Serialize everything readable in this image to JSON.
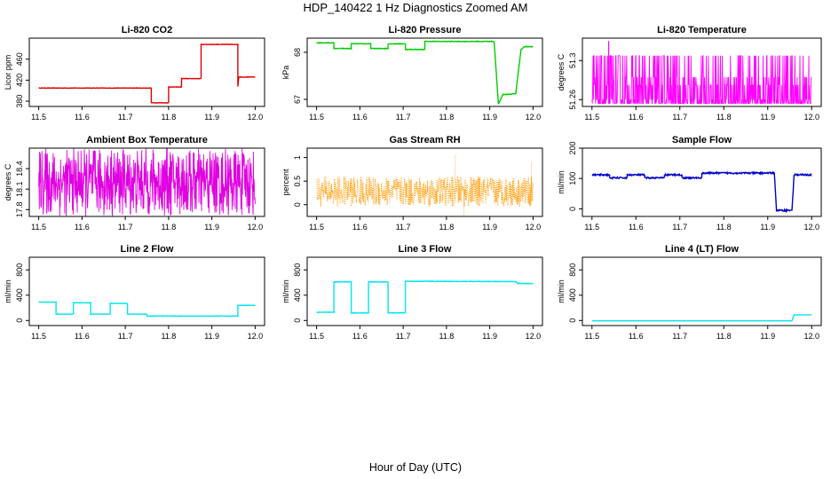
{
  "figure": {
    "title": "HDP_140422  1 Hz Diagnostics Zoomed AM",
    "xlabel": "Hour of Day (UTC)"
  },
  "chart_data": [
    {
      "type": "line",
      "title": "Li-820 CO2",
      "ylabel": "Licor ppm",
      "color": "#e00000",
      "xlim": [
        11.5,
        12.0
      ],
      "ylim": [
        370,
        500
      ],
      "xticks": [
        "11.5",
        "11.6",
        "11.7",
        "11.8",
        "11.9",
        "12.0"
      ],
      "yticks": [
        380,
        420,
        460
      ],
      "series": [
        {
          "pattern": "step",
          "noise": 0.4,
          "points": [
            [
              11.5,
              405
            ],
            [
              11.76,
              405
            ],
            [
              11.76,
              377
            ],
            [
              11.8,
              377
            ],
            [
              11.8,
              407
            ],
            [
              11.83,
              407
            ],
            [
              11.83,
              423
            ],
            [
              11.875,
              423
            ],
            [
              11.875,
              488
            ],
            [
              11.96,
              488
            ],
            [
              11.96,
              408
            ],
            [
              11.962,
              426
            ],
            [
              12.0,
              426
            ]
          ]
        }
      ]
    },
    {
      "type": "line",
      "title": "Li-820 Pressure",
      "ylabel": "kPa",
      "color": "#00cc00",
      "xlim": [
        11.5,
        12.0
      ],
      "ylim": [
        66.85,
        68.3
      ],
      "xticks": [
        "11.5",
        "11.6",
        "11.7",
        "11.8",
        "11.9",
        "12.0"
      ],
      "yticks": [
        67.0,
        68.0
      ],
      "series": [
        {
          "pattern": "step",
          "noise": 0.006,
          "points": [
            [
              11.5,
              68.2
            ],
            [
              11.54,
              68.2
            ],
            [
              11.54,
              68.08
            ],
            [
              11.58,
              68.08
            ],
            [
              11.58,
              68.18
            ],
            [
              11.625,
              68.18
            ],
            [
              11.625,
              68.08
            ],
            [
              11.665,
              68.08
            ],
            [
              11.665,
              68.18
            ],
            [
              11.705,
              68.18
            ],
            [
              11.705,
              68.06
            ],
            [
              11.75,
              68.06
            ],
            [
              11.75,
              68.23
            ],
            [
              11.91,
              68.23
            ],
            [
              11.92,
              66.9
            ],
            [
              11.93,
              67.1
            ],
            [
              11.96,
              67.12
            ],
            [
              11.972,
              68.05
            ],
            [
              11.98,
              68.12
            ],
            [
              12.0,
              68.12
            ]
          ]
        }
      ]
    },
    {
      "type": "line",
      "title": "Li-820 Temperature",
      "ylabel": "degrees C",
      "color": "#ff00ff",
      "xlim": [
        11.5,
        12.0
      ],
      "ylim": [
        51.253,
        51.323
      ],
      "xticks": [
        "11.5",
        "11.6",
        "11.7",
        "11.8",
        "11.9",
        "12.0"
      ],
      "yticks": [
        51.26,
        51.3
      ],
      "series": [
        {
          "pattern": "digital",
          "levels": [
            51.256,
            51.26,
            51.275,
            51.283,
            51.305
          ],
          "spike": [
            11.538,
            51.32
          ]
        }
      ]
    },
    {
      "type": "line",
      "title": "Ambient Box Temperature",
      "ylabel": "degrees C",
      "color": "#e000e0",
      "xlim": [
        11.5,
        12.0
      ],
      "ylim": [
        17.7,
        18.7
      ],
      "xticks": [
        "11.5",
        "11.6",
        "11.7",
        "11.8",
        "11.9",
        "12.0"
      ],
      "yticks": [
        17.8,
        18.1,
        18.4
      ],
      "series": [
        {
          "pattern": "noise",
          "center": 18.2,
          "amp": 0.5
        }
      ]
    },
    {
      "type": "line",
      "title": "Gas Stream RH",
      "ylabel": "percent",
      "color": "#ff9900",
      "xlim": [
        11.5,
        12.0
      ],
      "ylim": [
        -0.25,
        1.2
      ],
      "xticks": [
        "11.5",
        "11.6",
        "11.7",
        "11.8",
        "11.9",
        "12.0"
      ],
      "yticks": [
        0.0,
        0.5,
        1.0
      ],
      "series": [
        {
          "pattern": "dots",
          "center": 0.28,
          "amp": 0.32,
          "spikes": [
            [
              11.82,
              1.05
            ],
            [
              11.84,
              -0.28
            ],
            [
              11.996,
              0.9
            ]
          ]
        }
      ]
    },
    {
      "type": "line",
      "title": "Sample Flow",
      "ylabel": "ml/min",
      "color": "#0000cc",
      "xlim": [
        11.5,
        12.0
      ],
      "ylim": [
        -25,
        200
      ],
      "xticks": [
        "11.5",
        "11.6",
        "11.7",
        "11.8",
        "11.9",
        "12.0"
      ],
      "yticks": [
        0,
        100,
        200
      ],
      "series": [
        {
          "pattern": "step",
          "noise": 2.5,
          "points": [
            [
              11.5,
              112
            ],
            [
              11.54,
              112
            ],
            [
              11.54,
              102
            ],
            [
              11.58,
              102
            ],
            [
              11.58,
              112
            ],
            [
              11.62,
              112
            ],
            [
              11.62,
              102
            ],
            [
              11.665,
              102
            ],
            [
              11.665,
              112
            ],
            [
              11.705,
              112
            ],
            [
              11.705,
              102
            ],
            [
              11.75,
              102
            ],
            [
              11.75,
              118
            ],
            [
              11.915,
              118
            ],
            [
              11.92,
              -5
            ],
            [
              11.955,
              -5
            ],
            [
              11.96,
              112
            ],
            [
              12.0,
              112
            ]
          ]
        }
      ]
    },
    {
      "type": "line",
      "title": "Line 2 Flow",
      "ylabel": "ml/min",
      "color": "#00e5ee",
      "xlim": [
        11.5,
        12.0
      ],
      "ylim": [
        -80,
        1000
      ],
      "xticks": [
        "11.5",
        "11.6",
        "11.7",
        "11.8",
        "11.9",
        "12.0"
      ],
      "yticks": [
        0,
        400,
        800
      ],
      "series": [
        {
          "pattern": "step",
          "noise": 3,
          "points": [
            [
              11.5,
              290
            ],
            [
              11.54,
              290
            ],
            [
              11.54,
              100
            ],
            [
              11.58,
              100
            ],
            [
              11.58,
              280
            ],
            [
              11.62,
              280
            ],
            [
              11.62,
              100
            ],
            [
              11.665,
              100
            ],
            [
              11.665,
              270
            ],
            [
              11.705,
              270
            ],
            [
              11.705,
              100
            ],
            [
              11.75,
              100
            ],
            [
              11.75,
              70
            ],
            [
              11.96,
              70
            ],
            [
              11.96,
              240
            ],
            [
              12.0,
              240
            ]
          ]
        }
      ]
    },
    {
      "type": "line",
      "title": "Line 3 Flow",
      "ylabel": "ml/min",
      "color": "#00e5ee",
      "xlim": [
        11.5,
        12.0
      ],
      "ylim": [
        -80,
        1000
      ],
      "xticks": [
        "11.5",
        "11.6",
        "11.7",
        "11.8",
        "11.9",
        "12.0"
      ],
      "yticks": [
        0,
        400,
        800
      ],
      "series": [
        {
          "pattern": "step",
          "noise": 4,
          "points": [
            [
              11.5,
              130
            ],
            [
              11.54,
              130
            ],
            [
              11.54,
              610
            ],
            [
              11.58,
              610
            ],
            [
              11.58,
              120
            ],
            [
              11.62,
              120
            ],
            [
              11.62,
              610
            ],
            [
              11.665,
              610
            ],
            [
              11.665,
              120
            ],
            [
              11.705,
              120
            ],
            [
              11.705,
              620
            ],
            [
              11.96,
              615
            ],
            [
              11.965,
              585
            ],
            [
              12.0,
              585
            ]
          ]
        }
      ]
    },
    {
      "type": "line",
      "title": "Line 4 (LT) Flow",
      "ylabel": "ml/min",
      "color": "#00e5ee",
      "xlim": [
        11.5,
        12.0
      ],
      "ylim": [
        -80,
        1000
      ],
      "xticks": [
        "11.5",
        "11.6",
        "11.7",
        "11.8",
        "11.9",
        "12.0"
      ],
      "yticks": [
        0,
        400,
        800
      ],
      "series": [
        {
          "pattern": "step",
          "noise": 0,
          "points": [
            [
              11.5,
              -5
            ],
            [
              11.955,
              -5
            ],
            [
              11.96,
              90
            ],
            [
              12.0,
              90
            ]
          ]
        }
      ]
    }
  ]
}
